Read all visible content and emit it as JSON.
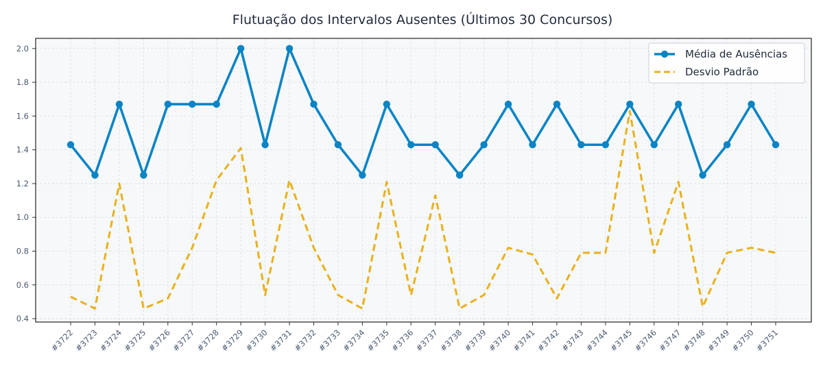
{
  "chart_data": {
    "type": "line",
    "title": "Flutuação dos Intervalos Ausentes (Últimos 30 Concursos)",
    "xlabel": "",
    "ylabel": "",
    "categories": [
      "#3722",
      "#3723",
      "#3724",
      "#3725",
      "#3726",
      "#3727",
      "#3728",
      "#3729",
      "#3730",
      "#3731",
      "#3732",
      "#3733",
      "#3734",
      "#3735",
      "#3736",
      "#3737",
      "#3738",
      "#3739",
      "#3740",
      "#3741",
      "#3742",
      "#3743",
      "#3744",
      "#3745",
      "#3746",
      "#3747",
      "#3748",
      "#3749",
      "#3750",
      "#3751"
    ],
    "series": [
      {
        "name": "Média de Ausências",
        "color": "#0a84c4",
        "style": "solid-markers",
        "values": [
          1.43,
          1.25,
          1.67,
          1.25,
          1.67,
          1.67,
          1.67,
          2.0,
          1.43,
          2.0,
          1.67,
          1.43,
          1.25,
          1.67,
          1.43,
          1.43,
          1.25,
          1.43,
          1.67,
          1.43,
          1.67,
          1.43,
          1.43,
          1.67,
          1.43,
          1.67,
          1.25,
          1.43,
          1.67,
          1.43
        ]
      },
      {
        "name": "Desvio Padrão",
        "color": "#e8b11c",
        "style": "dashed",
        "values": [
          0.53,
          0.46,
          1.2,
          0.46,
          0.52,
          0.82,
          1.22,
          1.41,
          0.54,
          1.22,
          0.82,
          0.54,
          0.46,
          1.21,
          0.54,
          1.13,
          0.46,
          0.54,
          0.82,
          0.78,
          0.52,
          0.79,
          0.79,
          1.63,
          0.79,
          1.21,
          0.47,
          0.79,
          0.82,
          0.79
        ]
      }
    ],
    "ylim": [
      0.38,
      2.06
    ],
    "yticks": [
      0.4,
      0.6,
      0.8,
      1.0,
      1.2,
      1.4,
      1.6,
      1.8,
      2.0
    ],
    "ytick_labels": [
      "0.4",
      "0.6",
      "0.8",
      "1.0",
      "1.2",
      "1.4",
      "1.6",
      "1.8",
      "2.0"
    ],
    "grid": true,
    "legend_position": "top-right",
    "plot_background": "#f6f8fa"
  }
}
